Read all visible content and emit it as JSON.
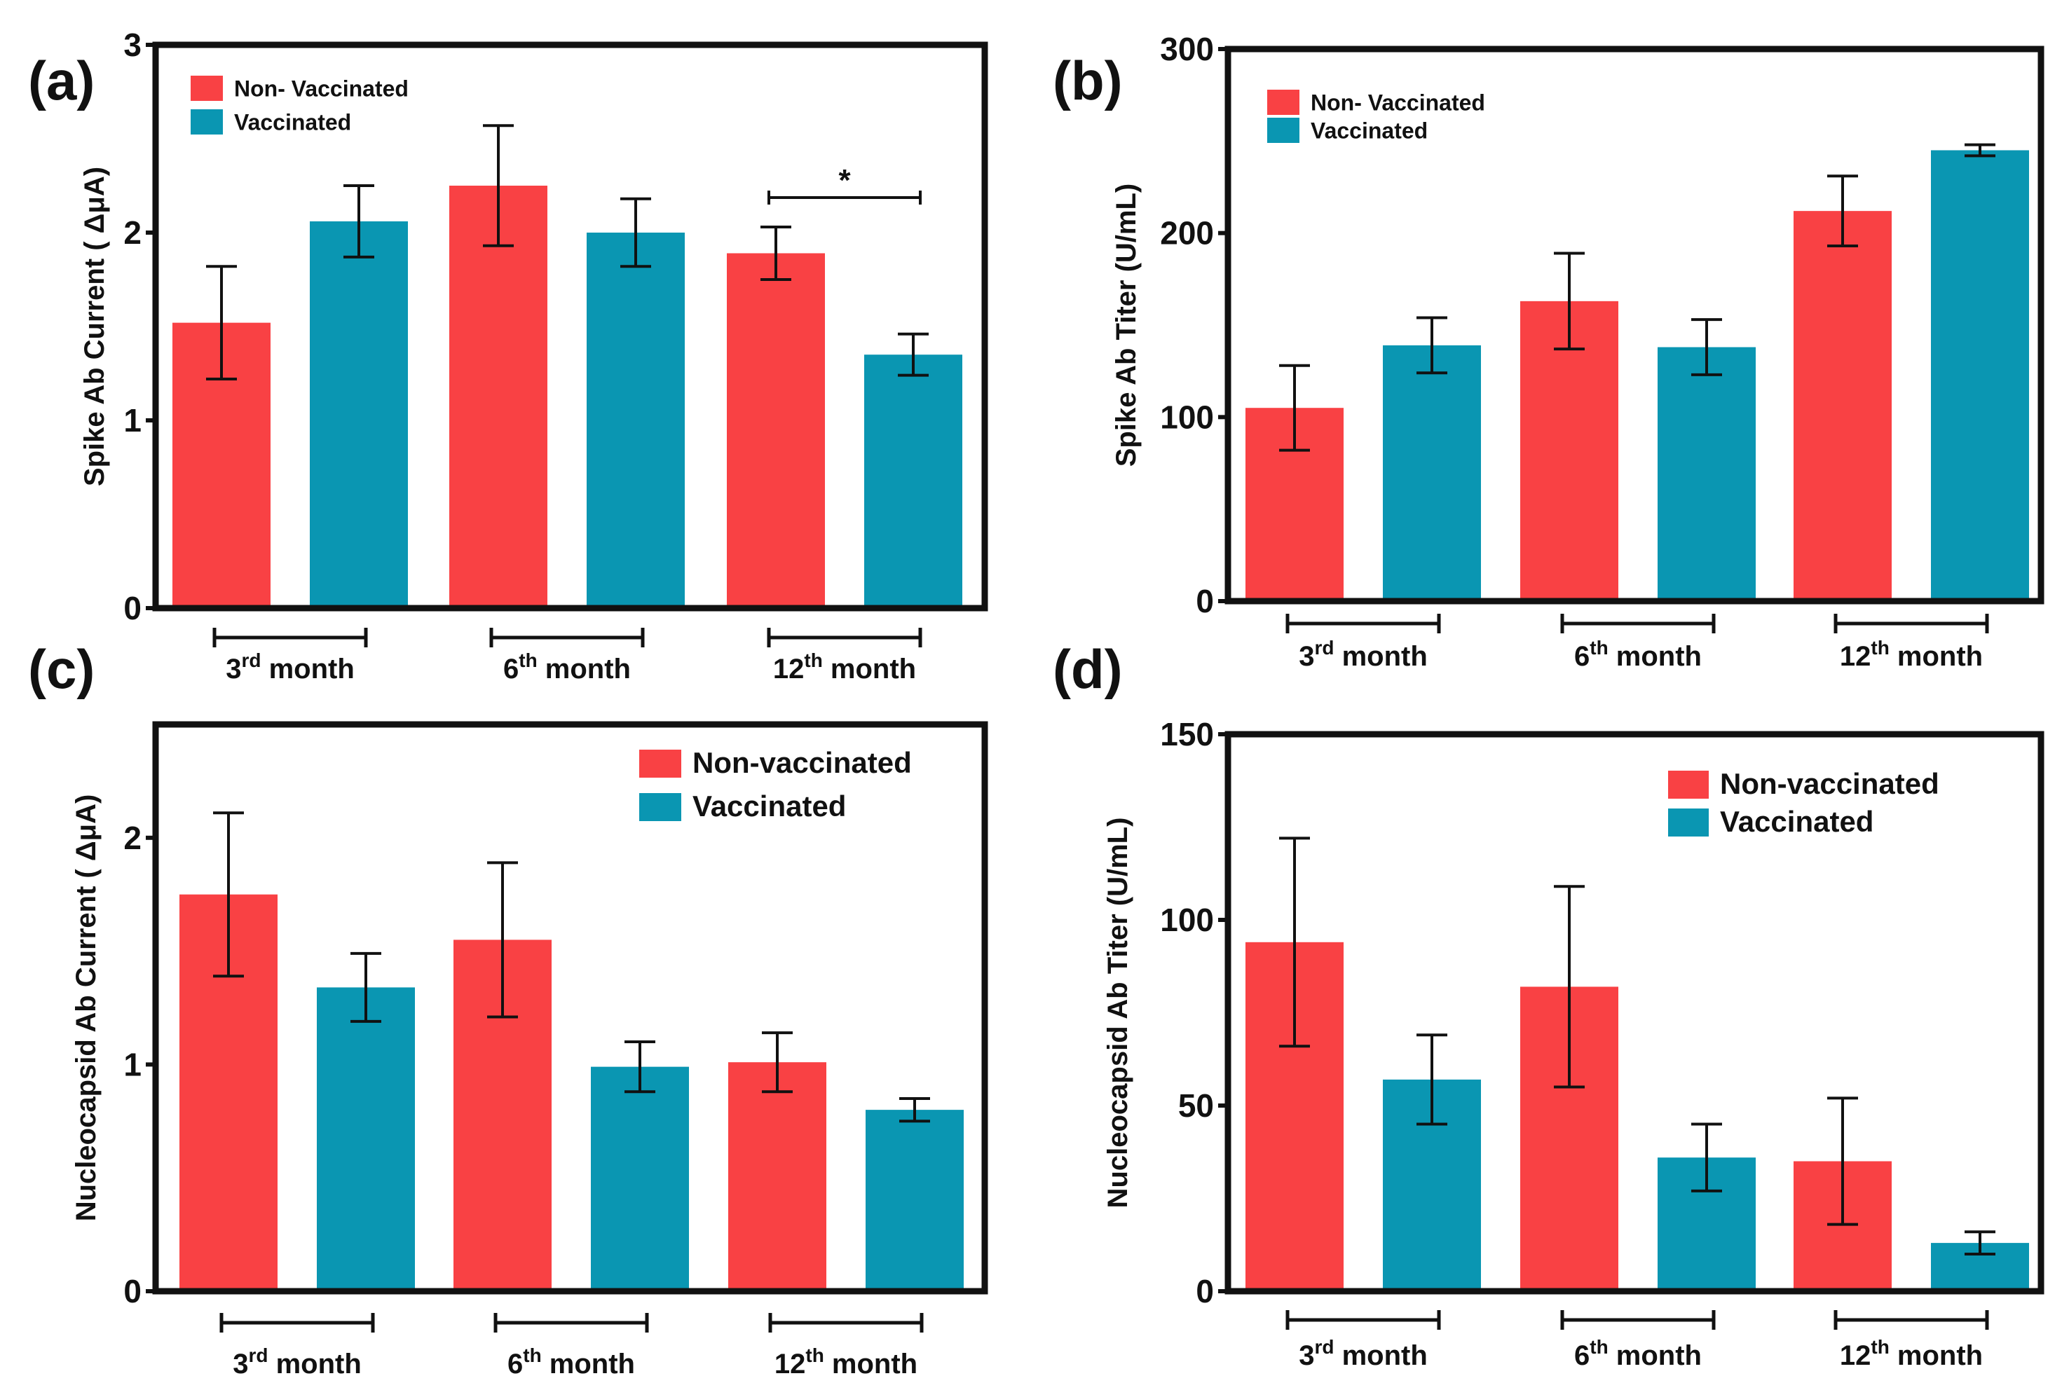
{
  "colors": {
    "non_vaccinated": "#F94144",
    "vaccinated": "#0A96B2",
    "axis": "#111111"
  },
  "chart_data": [
    {
      "type": "bar",
      "panel": "(a)",
      "ylabel": "Spike Ab Current ( ΔμA)",
      "ylim": [
        0,
        3
      ],
      "yticks": [
        "0",
        "1",
        "2",
        "3"
      ],
      "categories": [
        {
          "base": "3",
          "sup": "rd",
          "text": " month"
        },
        {
          "base": "6",
          "sup": "th",
          "text": " month"
        },
        {
          "base": "12",
          "sup": "th",
          "text": " month"
        }
      ],
      "legend": {
        "position": "top-left",
        "items": [
          "Non- Vaccinated",
          "Vaccinated"
        ]
      },
      "series": [
        {
          "name": "Non- Vaccinated",
          "values": [
            1.52,
            2.25,
            1.89
          ],
          "errors": [
            0.3,
            0.32,
            0.14
          ]
        },
        {
          "name": "Vaccinated",
          "values": [
            2.06,
            2.0,
            1.35
          ],
          "errors": [
            0.19,
            0.18,
            0.11
          ]
        }
      ],
      "annotations": [
        {
          "text": "*",
          "group": 2
        }
      ]
    },
    {
      "type": "bar",
      "panel": "(b)",
      "ylabel": "Spike Ab Titer (U/mL)",
      "ylim": [
        0,
        300
      ],
      "yticks": [
        "0",
        "100",
        "200",
        "300"
      ],
      "categories": [
        {
          "base": "3",
          "sup": "rd",
          "text": " month"
        },
        {
          "base": "6",
          "sup": "th",
          "text": " month"
        },
        {
          "base": "12",
          "sup": "th",
          "text": " month"
        }
      ],
      "legend": {
        "position": "top-left",
        "items": [
          "Non- Vaccinated",
          "Vaccinated"
        ]
      },
      "series": [
        {
          "name": "Non- Vaccinated",
          "values": [
            105,
            163,
            212
          ],
          "errors": [
            23,
            26,
            19
          ]
        },
        {
          "name": "Vaccinated",
          "values": [
            139,
            138,
            245
          ],
          "errors": [
            15,
            15,
            3
          ]
        }
      ],
      "annotations": []
    },
    {
      "type": "bar",
      "panel": "(c)",
      "ylabel": "Nucleocapsid Ab Current ( ΔμA)",
      "ylim": [
        0,
        2.5
      ],
      "yticks": [
        "0",
        "1",
        "2"
      ],
      "categories": [
        {
          "base": "3",
          "sup": "rd",
          "text": " month"
        },
        {
          "base": "6",
          "sup": "th",
          "text": " month"
        },
        {
          "base": "12",
          "sup": "th",
          "text": " month"
        }
      ],
      "legend": {
        "position": "top-right",
        "items": [
          "Non-vaccinated",
          "Vaccinated"
        ]
      },
      "series": [
        {
          "name": "Non-vaccinated",
          "values": [
            1.75,
            1.55,
            1.01
          ],
          "errors": [
            0.36,
            0.34,
            0.13
          ]
        },
        {
          "name": "Vaccinated",
          "values": [
            1.34,
            0.99,
            0.8
          ],
          "errors": [
            0.15,
            0.11,
            0.05
          ]
        }
      ],
      "annotations": []
    },
    {
      "type": "bar",
      "panel": "(d)",
      "ylabel": "Nucleocapsid Ab Titer (U/mL)",
      "ylim": [
        0,
        150
      ],
      "yticks": [
        "0",
        "50",
        "100",
        "150"
      ],
      "categories": [
        {
          "base": "3",
          "sup": "rd",
          "text": " month"
        },
        {
          "base": "6",
          "sup": "th",
          "text": " month"
        },
        {
          "base": "12",
          "sup": "th",
          "text": " month"
        }
      ],
      "legend": {
        "position": "top-right",
        "items": [
          "Non-vaccinated",
          "Vaccinated"
        ]
      },
      "series": [
        {
          "name": "Non-vaccinated",
          "values": [
            94,
            82,
            35
          ],
          "errors": [
            28,
            27,
            17
          ]
        },
        {
          "name": "Vaccinated",
          "values": [
            57,
            36,
            13
          ],
          "errors": [
            12,
            9,
            3
          ]
        }
      ],
      "annotations": []
    }
  ]
}
